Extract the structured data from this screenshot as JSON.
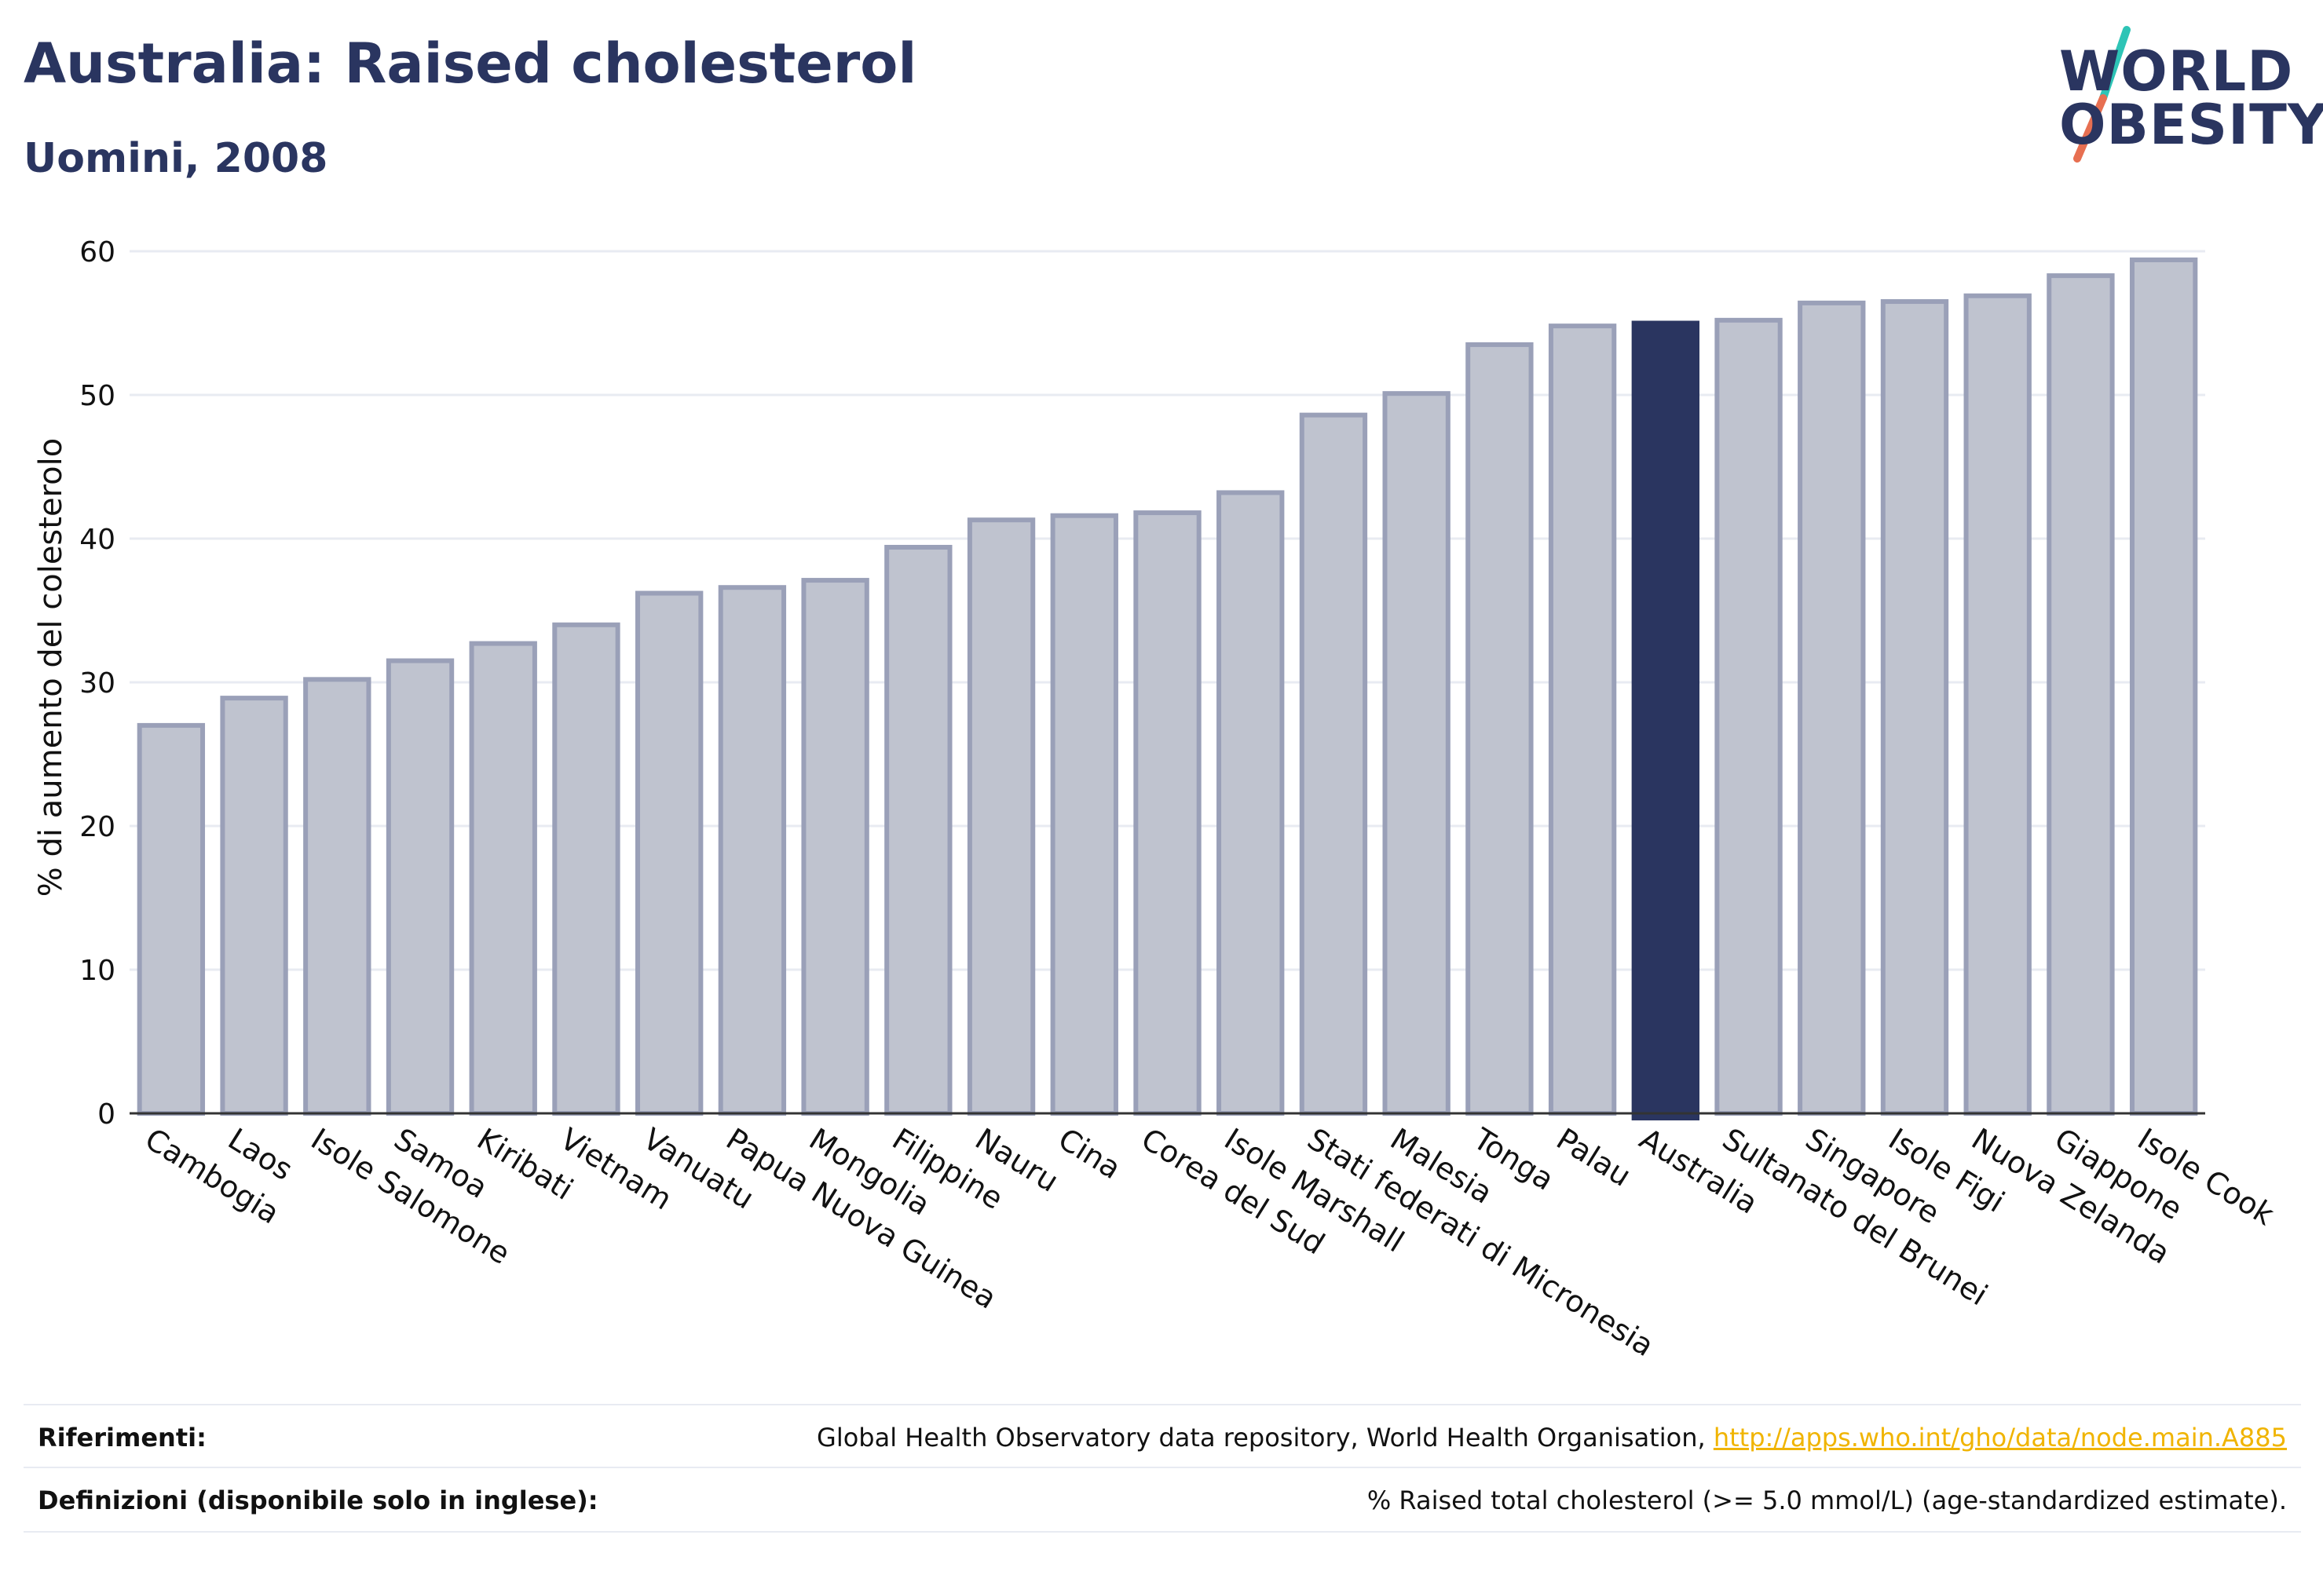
{
  "header": {
    "title": "Australia: Raised cholesterol",
    "subtitle": "Uomini, 2008"
  },
  "logo": {
    "line1": "WORLD",
    "line2": "OBESITY",
    "accent_colors": [
      "#2ec4b6",
      "#e76f51"
    ]
  },
  "colors": {
    "bar_default": "#bfc3cf",
    "bar_stroke": "#9aa0b8",
    "bar_highlight": "#2a3560",
    "grid": "#e8ebf2",
    "text": "#2a3560"
  },
  "chart_data": {
    "type": "bar",
    "title": "Australia: Raised cholesterol",
    "subtitle": "Uomini, 2008",
    "ylabel": "% di aumento del colesterolo",
    "ylim": [
      0,
      60
    ],
    "yticks": [
      0,
      10,
      20,
      30,
      40,
      50,
      60
    ],
    "grid": true,
    "highlight": "Australia",
    "categories": [
      "Cambogia",
      "Laos",
      "Isole Salomone",
      "Samoa",
      "Kiribati",
      "Vietnam",
      "Vanuatu",
      "Papua Nuova Guinea",
      "Mongolia",
      "Filippine",
      "Nauru",
      "Cina",
      "Corea del Sud",
      "Isole Marshall",
      "Stati federati di Micronesia",
      "Malesia",
      "Tonga",
      "Palau",
      "Australia",
      "Sultanato del Brunei",
      "Singapore",
      "Isole Figi",
      "Nuova Zelanda",
      "Giappone",
      "Isole Cook"
    ],
    "values": [
      27.0,
      28.9,
      30.2,
      31.5,
      32.7,
      34.0,
      36.2,
      36.6,
      37.1,
      39.4,
      41.3,
      41.6,
      41.8,
      43.2,
      48.6,
      50.1,
      53.5,
      54.8,
      55.0,
      55.2,
      56.4,
      56.5,
      56.9,
      58.3,
      59.4
    ]
  },
  "footer": {
    "references_label": "Riferimenti:",
    "references_text": "Global Health Observatory data repository, World Health Organisation,",
    "references_link": "http://apps.who.int/gho/data/node.main.A885",
    "definitions_label": "Definizioni (disponibile solo in inglese):",
    "definitions_text": "% Raised total cholesterol (>= 5.0 mmol/L) (age-standardized estimate)."
  }
}
